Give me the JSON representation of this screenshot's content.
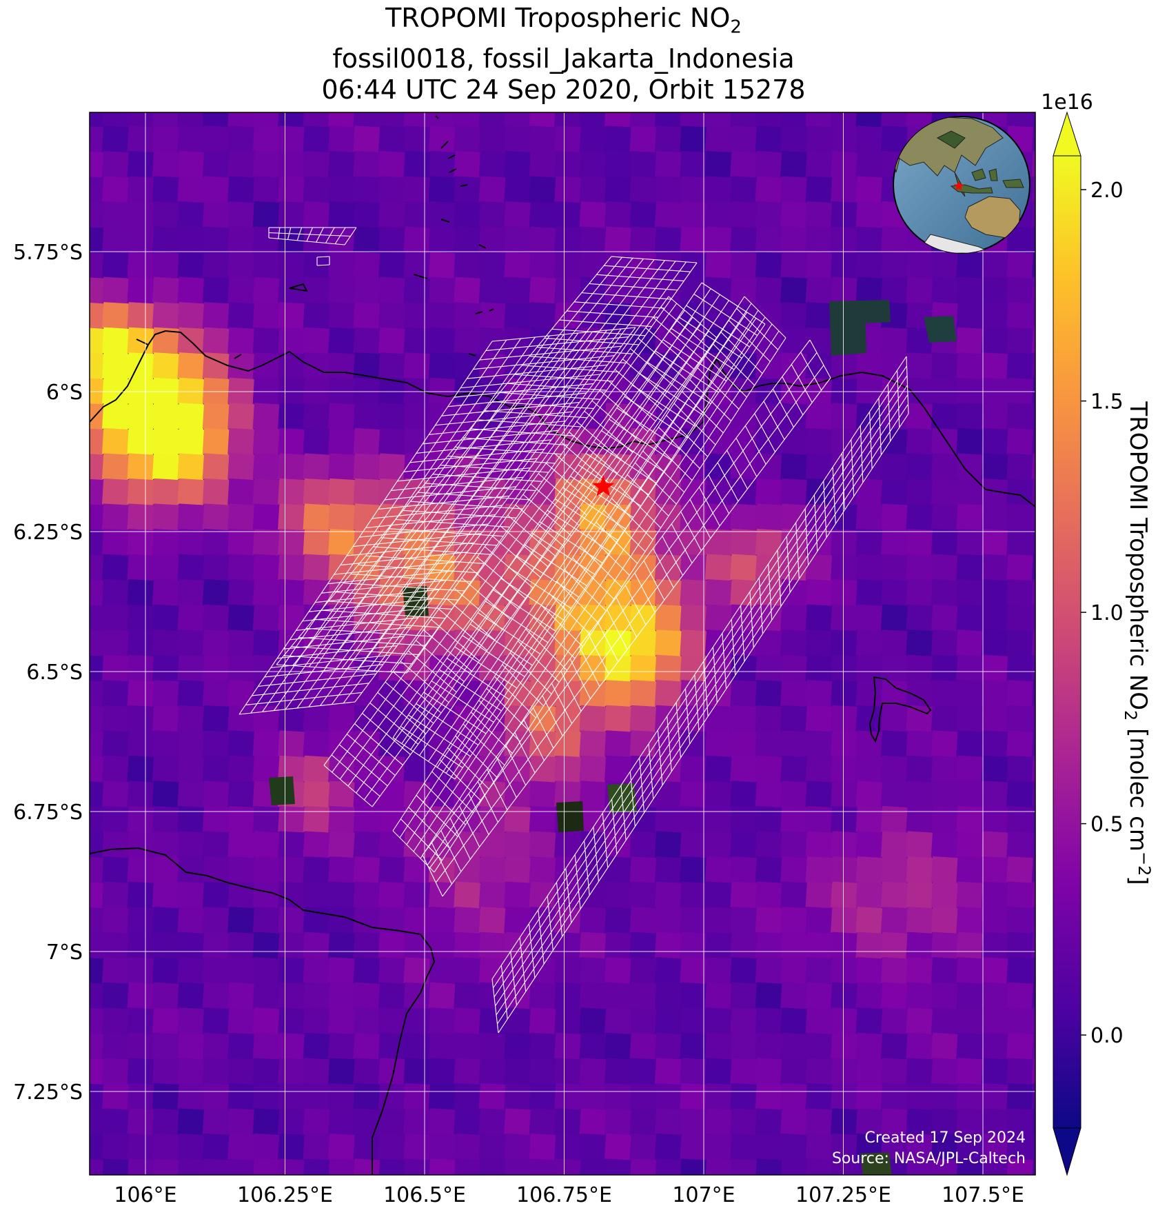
{
  "title": {
    "line1_prefix": "TROPOMI Tropospheric NO",
    "line1_subscript": "2",
    "line2": "fossil0018, fossil_Jakarta_Indonesia",
    "line3": "06:44 UTC 24 Sep 2020, Orbit 15278"
  },
  "axes": {
    "x_ticks": [
      "106°E",
      "106.25°E",
      "106.5°E",
      "106.75°E",
      "107°E",
      "107.25°E",
      "107.5°E"
    ],
    "y_ticks": [
      "5.75°S",
      "6°S",
      "6.25°S",
      "6.5°S",
      "6.75°S",
      "7°S",
      "7.25°S"
    ]
  },
  "colorbar": {
    "label_prefix": "TROPOMI Tropospheric NO",
    "label_sub": "2",
    "label_suffix": " [molec cm",
    "label_sup": "−2",
    "label_end": "]",
    "exponent": "1e16",
    "ticks": [
      "0.0",
      "0.5",
      "1.0",
      "1.5",
      "2.0"
    ],
    "tick_values": [
      0.0,
      0.5,
      1.0,
      1.5,
      2.0
    ],
    "range": [
      -0.22,
      2.08
    ],
    "colormap": "plasma"
  },
  "target_marker": {
    "lon": 106.82,
    "lat": -6.17,
    "symbol": "star",
    "color": "#ff0000"
  },
  "footer": {
    "created": "Created 17 Sep 2024",
    "source": "Source: NASA/JPL-Caltech"
  }
}
